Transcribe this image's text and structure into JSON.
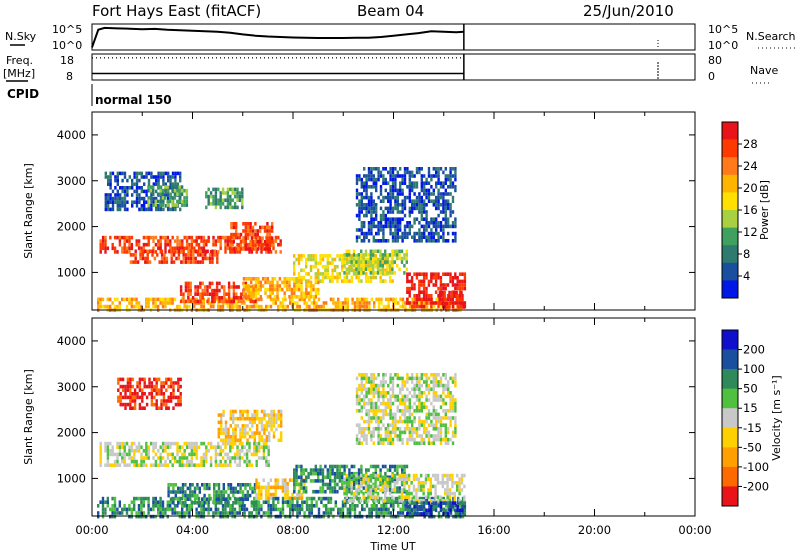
{
  "header": {
    "title": "Fort Hays East (fitACF)",
    "beam": "Beam 04",
    "date": "25/Jun/2010"
  },
  "chart_data": [
    {
      "type": "line",
      "panel": "noise",
      "left_label": "N.Sky",
      "right_label": "N.Search",
      "left_ticks": [
        "10^5",
        "10^0"
      ],
      "right_ticks": [
        "10^5",
        "10^0"
      ],
      "x_range_hours": [
        0,
        24
      ],
      "series": [
        {
          "style": "solid",
          "x": [
            0,
            0.25,
            0.5,
            1,
            1.5,
            2,
            2.5,
            3,
            3.5,
            4,
            4.5,
            5,
            5.5,
            6,
            6.5,
            7,
            7.5,
            8,
            8.5,
            9,
            9.5,
            10,
            10.5,
            11,
            11.5,
            12,
            12.5,
            13,
            13.5,
            14,
            14.5,
            14.8
          ],
          "y": [
            0.1,
            0.78,
            0.85,
            0.83,
            0.82,
            0.8,
            0.81,
            0.78,
            0.76,
            0.74,
            0.72,
            0.7,
            0.66,
            0.6,
            0.55,
            0.52,
            0.5,
            0.48,
            0.47,
            0.46,
            0.46,
            0.46,
            0.47,
            0.47,
            0.5,
            0.55,
            0.6,
            0.65,
            0.72,
            0.7,
            0.68,
            0.7
          ]
        }
      ]
    },
    {
      "type": "line",
      "panel": "frequency",
      "left_label": "Freq.",
      "left_unit": "[MHz]",
      "right_label": "Nave",
      "left_ticks": [
        "18",
        "8"
      ],
      "right_ticks": [
        "80",
        "0"
      ],
      "x_range_hours": [
        0,
        24
      ],
      "series": [
        {
          "style": "solid",
          "x": [
            0,
            14.8
          ],
          "y": [
            10.5,
            10.5
          ]
        },
        {
          "style": "dotted",
          "x": [
            0,
            14.8
          ],
          "y": [
            16.5,
            16.5
          ]
        }
      ]
    },
    {
      "type": "label",
      "panel": "cpid",
      "label": "CPID",
      "segments": [
        {
          "start_hour": 0,
          "end_hour": 14.8,
          "text": "normal 150"
        }
      ]
    },
    {
      "type": "heatmap",
      "panel": "power",
      "ylabel": "Slant Range [km]",
      "y_ticks": [
        1000,
        2000,
        3000,
        4000
      ],
      "ylim": [
        180,
        4500
      ],
      "x_range_hours": [
        0,
        24
      ],
      "colorbar": {
        "label": "Power [dB]",
        "ticks": [
          "28",
          "24",
          "20",
          "16",
          "12",
          "8",
          "4"
        ],
        "colors": [
          "#e8141a",
          "#ff3a00",
          "#ff7a1a",
          "#ffb400",
          "#ffe000",
          "#a8d040",
          "#40a060",
          "#2e7a6e",
          "#1a4fa0",
          "#0018e6"
        ]
      },
      "regions": [
        {
          "x": [
            0.2,
            14.8
          ],
          "y": [
            200,
            450
          ],
          "level": 6
        },
        {
          "x": [
            0.3,
            7.5
          ],
          "y": [
            1450,
            1800
          ],
          "level": 8
        },
        {
          "x": [
            1.5,
            5.0
          ],
          "y": [
            1200,
            1500
          ],
          "level": 8
        },
        {
          "x": [
            5.5,
            7.2
          ],
          "y": [
            1500,
            2100
          ],
          "level": 8
        },
        {
          "x": [
            3.5,
            6.5
          ],
          "y": [
            350,
            800
          ],
          "level": 8
        },
        {
          "x": [
            6.0,
            9.0
          ],
          "y": [
            500,
            900
          ],
          "level": 6
        },
        {
          "x": [
            8.0,
            12.0
          ],
          "y": [
            800,
            1400
          ],
          "level": 5
        },
        {
          "x": [
            10.0,
            12.5
          ],
          "y": [
            1000,
            1500
          ],
          "level": 4
        },
        {
          "x": [
            12.5,
            14.8
          ],
          "y": [
            250,
            1000
          ],
          "level": 9
        },
        {
          "x": [
            13.8,
            14.8
          ],
          "y": [
            250,
            600
          ],
          "level": 9
        },
        {
          "x": [
            0.5,
            3.5
          ],
          "y": [
            2400,
            3200
          ],
          "level": 1
        },
        {
          "x": [
            2.2,
            3.8
          ],
          "y": [
            2500,
            2900
          ],
          "level": 3
        },
        {
          "x": [
            4.5,
            6.0
          ],
          "y": [
            2400,
            2850
          ],
          "level": 3
        },
        {
          "x": [
            10.5,
            14.5
          ],
          "y": [
            1700,
            3300
          ],
          "level": 1
        }
      ]
    },
    {
      "type": "heatmap",
      "panel": "velocity",
      "ylabel": "Slant Range [km]",
      "xlabel": "Time UT",
      "x_ticks": [
        "00:00",
        "04:00",
        "08:00",
        "12:00",
        "16:00",
        "20:00",
        "00:00"
      ],
      "y_ticks": [
        1000,
        2000,
        3000,
        4000
      ],
      "ylim": [
        180,
        4500
      ],
      "x_range_hours": [
        0,
        24
      ],
      "colorbar": {
        "label": "Velocity [m s⁻¹]",
        "ticks": [
          "200",
          "100",
          "50",
          "15",
          "-15",
          "-50",
          "-100",
          "-200"
        ],
        "colors": [
          "#1010cc",
          "#1a4fa0",
          "#2e8a5a",
          "#50c040",
          "#c8c8c8",
          "#ffd000",
          "#ffa000",
          "#ff6a00",
          "#e8141a"
        ]
      },
      "regions": [
        {
          "x": [
            0.2,
            14.8
          ],
          "y": [
            200,
            600
          ],
          "level": 6
        },
        {
          "x": [
            0.3,
            7.0
          ],
          "y": [
            1300,
            1800
          ],
          "level": 4
        },
        {
          "x": [
            1.0,
            3.5
          ],
          "y": [
            2500,
            3200
          ],
          "level": 0
        },
        {
          "x": [
            3.0,
            6.5
          ],
          "y": [
            500,
            900
          ],
          "level": 6
        },
        {
          "x": [
            5.0,
            7.5
          ],
          "y": [
            1800,
            2500
          ],
          "level": 3
        },
        {
          "x": [
            6.5,
            8.5
          ],
          "y": [
            600,
            1000
          ],
          "level": 3
        },
        {
          "x": [
            8.0,
            12.5
          ],
          "y": [
            700,
            1300
          ],
          "level": 6
        },
        {
          "x": [
            10.0,
            14.8
          ],
          "y": [
            500,
            1100
          ],
          "level": 4
        },
        {
          "x": [
            10.5,
            14.5
          ],
          "y": [
            1800,
            3300
          ],
          "level": 4
        },
        {
          "x": [
            12.5,
            14.8
          ],
          "y": [
            200,
            500
          ],
          "level": 7
        }
      ]
    }
  ]
}
